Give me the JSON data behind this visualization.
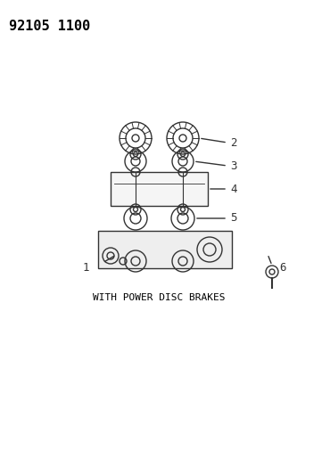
{
  "title_text": "92105 1100",
  "caption": "WITH POWER DISC BRAKES",
  "background_color": "#ffffff",
  "line_color": "#333333",
  "part_labels": [
    "1",
    "2",
    "3",
    "4",
    "5",
    "6"
  ],
  "fig_width": 3.7,
  "fig_height": 5.33,
  "dpi": 100
}
